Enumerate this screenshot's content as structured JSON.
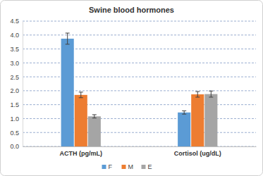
{
  "chart_data": {
    "type": "bar",
    "title": "Swine blood hormones",
    "categories": [
      "ACTH (pg/mL)",
      "Cortisol (ug/dL)"
    ],
    "series": [
      {
        "name": "F",
        "color": "#5b9bd5",
        "values": [
          3.87,
          1.22
        ],
        "errors": [
          0.2,
          0.06
        ]
      },
      {
        "name": "M",
        "color": "#ed7d31",
        "values": [
          1.85,
          1.87
        ],
        "errors": [
          0.1,
          0.1
        ]
      },
      {
        "name": "E",
        "color": "#a5a5a5",
        "values": [
          1.08,
          1.88
        ],
        "errors": [
          0.06,
          0.11
        ]
      }
    ],
    "ylim": [
      0,
      4.5
    ],
    "yticks": [
      {
        "value": 0,
        "label": "0.0"
      },
      0.5,
      {
        "value": 1,
        "label": "1.0"
      },
      1.5,
      {
        "value": 2,
        "label": "2.0"
      },
      2.5,
      {
        "value": 3,
        "label": "3.0"
      },
      3.5,
      {
        "value": 4,
        "label": "4.0"
      },
      4.5
    ],
    "grid": true,
    "legend": "bottom"
  }
}
